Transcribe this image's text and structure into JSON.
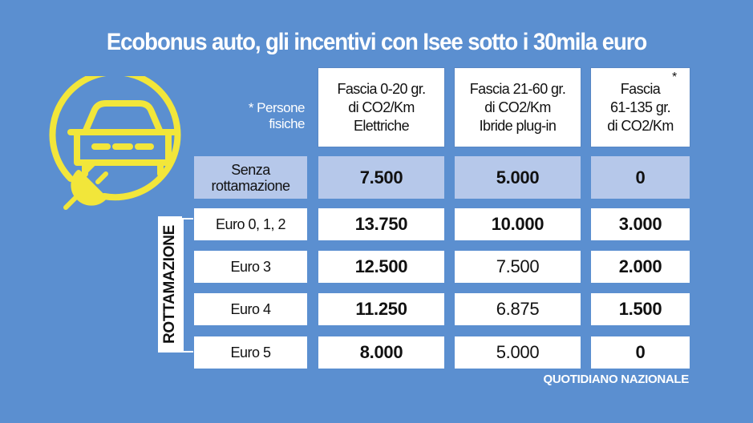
{
  "title": "Ecobonus auto, gli incentivi con Isee sotto i 30mila euro",
  "note": "* Persone fisiche",
  "note_lines": [
    "* Persone",
    "fisiche"
  ],
  "asterisk": "*",
  "colors": {
    "background": "#5b8fd0",
    "highlight_row": "#b6c8ea",
    "icon": "#f2e63a"
  },
  "icon": "car-charging-plug-icon",
  "columns": [
    {
      "lines": [
        "Fascia 0-20 gr.",
        "di CO2/Km",
        "Elettriche"
      ]
    },
    {
      "lines": [
        "Fascia 21-60 gr.",
        "di CO2/Km",
        "Ibride plug-in"
      ]
    },
    {
      "lines": [
        "Fascia",
        "61-135 gr.",
        "di CO2/Km"
      ]
    }
  ],
  "senza": {
    "label_lines": [
      "Senza",
      "rottamazione"
    ],
    "values": [
      "7.500",
      "5.000",
      "0"
    ]
  },
  "rottamazione_label": "ROTTAMAZIONE",
  "rows": [
    {
      "label": "Euro 0, 1, 2",
      "values": [
        "13.750",
        "10.000",
        "3.000"
      ]
    },
    {
      "label": "Euro 3",
      "values": [
        "12.500",
        "7.500",
        "2.000"
      ]
    },
    {
      "label": "Euro 4",
      "values": [
        "11.250",
        "6.875",
        "1.500"
      ]
    },
    {
      "label": "Euro 5",
      "values": [
        "8.000",
        "5.000",
        "0"
      ]
    }
  ],
  "credit": "QUOTIDIANO NAZIONALE"
}
